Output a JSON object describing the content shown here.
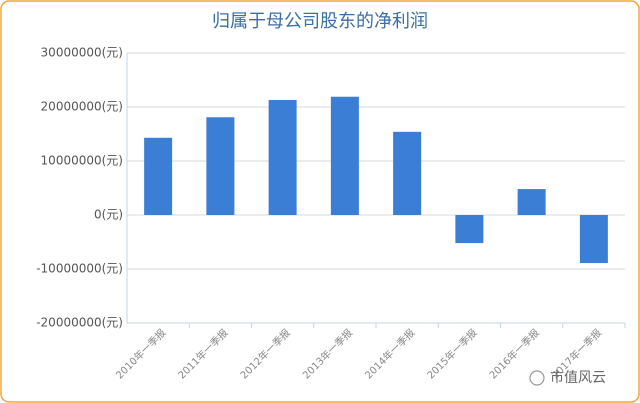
{
  "chart_data": {
    "type": "bar",
    "title": "归属于母公司股东的净利润",
    "categories": [
      "2010年一季报",
      "2011年一季报",
      "2012年一季报",
      "2013年一季报",
      "2014年一季报",
      "2015年一季报",
      "2016年一季报",
      "2017年一季报"
    ],
    "values": [
      14300000,
      18100000,
      21300000,
      21900000,
      15400000,
      -5200000,
      4800000,
      -8900000
    ],
    "color": "#3a7fd5",
    "ylim": [
      -20000000,
      30000000
    ],
    "yticks": [
      {
        "value": -20000000,
        "label": "-20000000(元)"
      },
      {
        "value": -10000000,
        "label": "-10000000(元)"
      },
      {
        "value": 0,
        "label": "0(元)"
      },
      {
        "value": 10000000,
        "label": "10000000(元)"
      },
      {
        "value": 20000000,
        "label": "20000000(元)"
      },
      {
        "value": 30000000,
        "label": "30000000(元)"
      }
    ],
    "grid": true,
    "watermark": "市值风云"
  }
}
